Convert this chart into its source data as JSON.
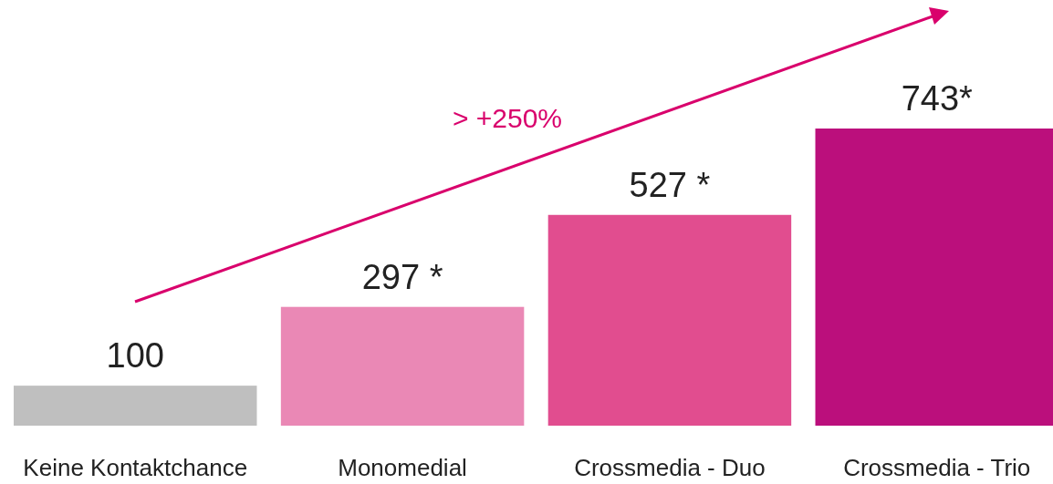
{
  "chart_data": {
    "type": "bar",
    "categories": [
      "Keine Kontaktchance",
      "Monomedial",
      "Crossmedia - Duo",
      "Crossmedia - Trio"
    ],
    "values": [
      100,
      297,
      527,
      743
    ],
    "colors": [
      "#bfbfbf",
      "#ea88b5",
      "#e14d8f",
      "#bb0f7c"
    ],
    "value_labels": [
      "100",
      "297 *",
      "527 *",
      "743*"
    ],
    "annotations": [
      "> +250%"
    ]
  }
}
